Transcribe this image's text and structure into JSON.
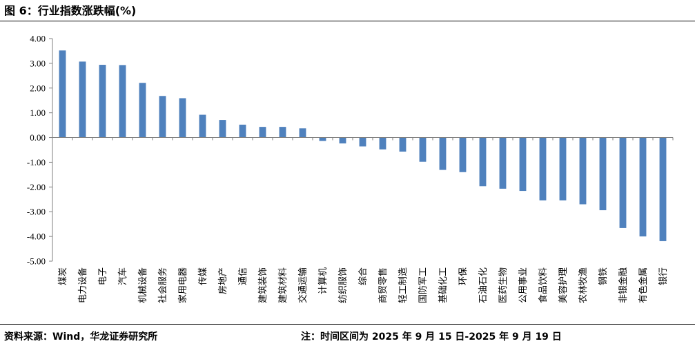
{
  "header": {
    "title": "图 6：行业指数涨跌幅(%)"
  },
  "footer": {
    "source": "资料来源：Wind，华龙证券研究所",
    "note": "注：时间区间为 2025 年 9 月 15 日-2025 年 9 月 19 日"
  },
  "colors": {
    "bar": "#4f81bd",
    "axis": "#7f7f7f"
  },
  "chart_data": {
    "type": "bar",
    "title": "行业指数涨跌幅(%)",
    "xlabel": "",
    "ylabel": "",
    "ylim": [
      -5.0,
      4.0
    ],
    "yticks": [
      "4.00",
      "3.00",
      "2.00",
      "1.00",
      "0.00",
      "-1.00",
      "-2.00",
      "-3.00",
      "-4.00",
      "-5.00"
    ],
    "ytick_values": [
      4,
      3,
      2,
      1,
      0,
      -1,
      -2,
      -3,
      -4,
      -5
    ],
    "grid": false,
    "categories": [
      "煤炭",
      "电力设备",
      "电子",
      "汽车",
      "机械设备",
      "社会服务",
      "家用电器",
      "传媒",
      "房地产",
      "通信",
      "建筑装饰",
      "建筑材料",
      "交通运输",
      "计算机",
      "纺织服饰",
      "综合",
      "商贸零售",
      "轻工制造",
      "国防军工",
      "基础化工",
      "环保",
      "石油石化",
      "医药生物",
      "公用事业",
      "食品饮料",
      "美容护理",
      "农林牧渔",
      "钢铁",
      "非银金融",
      "有色金属",
      "银行"
    ],
    "values": [
      3.52,
      3.07,
      2.94,
      2.93,
      2.21,
      1.68,
      1.59,
      0.92,
      0.71,
      0.52,
      0.43,
      0.43,
      0.37,
      -0.14,
      -0.24,
      -0.36,
      -0.48,
      -0.57,
      -0.98,
      -1.31,
      -1.4,
      -1.97,
      -2.07,
      -2.16,
      -2.54,
      -2.54,
      -2.7,
      -2.94,
      -3.66,
      -4.0,
      -4.19
    ]
  }
}
